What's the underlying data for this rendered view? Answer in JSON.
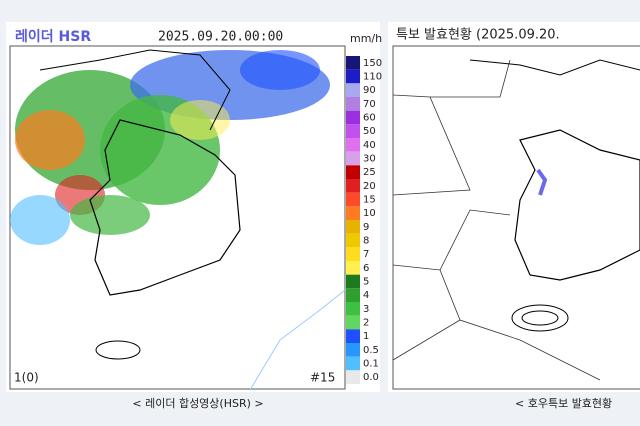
{
  "left_panel": {
    "title": "레이더 HSR",
    "timestamp": "2025.09.20.00:00",
    "unit": "mm/h",
    "legend": [
      {
        "label": "150",
        "color": "#15157a"
      },
      {
        "label": "110",
        "color": "#1c1cc8"
      },
      {
        "label": "90",
        "color": "#a8a8ef"
      },
      {
        "label": "70",
        "color": "#b07fe0"
      },
      {
        "label": "60",
        "color": "#9b30e0"
      },
      {
        "label": "50",
        "color": "#c050f0"
      },
      {
        "label": "40",
        "color": "#e070f0"
      },
      {
        "label": "30",
        "color": "#d8a0e8"
      },
      {
        "label": "25",
        "color": "#c00000"
      },
      {
        "label": "20",
        "color": "#e02020"
      },
      {
        "label": "15",
        "color": "#ff4a2a"
      },
      {
        "label": "10",
        "color": "#ff7a20"
      },
      {
        "label": "9",
        "color": "#e6b400"
      },
      {
        "label": "8",
        "color": "#f0c800"
      },
      {
        "label": "7",
        "color": "#ffdc1e"
      },
      {
        "label": "6",
        "color": "#fff050"
      },
      {
        "label": "5",
        "color": "#1e7a1e"
      },
      {
        "label": "4",
        "color": "#2ea02e"
      },
      {
        "label": "3",
        "color": "#40c040"
      },
      {
        "label": "2",
        "color": "#60d860"
      },
      {
        "label": "1",
        "color": "#1e50ff"
      },
      {
        "label": "0.5",
        "color": "#2896ff"
      },
      {
        "label": "0.1",
        "color": "#50beff"
      },
      {
        "label": "0.0",
        "color": "#e8e8e8"
      }
    ],
    "frame_label": "1(0)",
    "station_label": "#15",
    "caption": "< 레이더 합성영상(HSR) >"
  },
  "right_panel": {
    "title": "특보 발효현황 (2025.09.20.",
    "caption": "< 호우특보 발효현황"
  }
}
